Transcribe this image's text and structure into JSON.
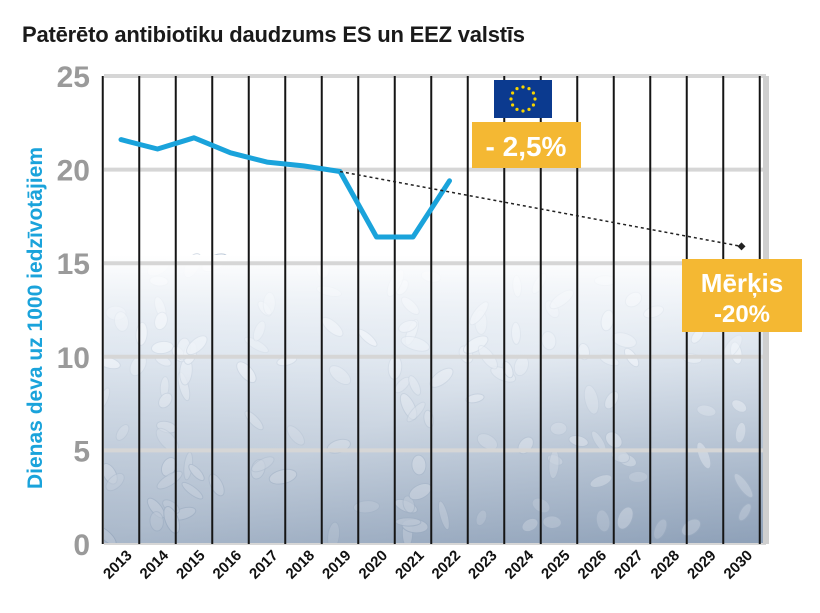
{
  "chart_data": {
    "type": "line",
    "title": "Patērēto antibiotiku daudzums ES un EEZ valstīs",
    "ylabel": "Dienas deva uz 1000 iedzīvotājiem",
    "xlabel": "",
    "x": [
      "2013",
      "2014",
      "2015",
      "2016",
      "2017",
      "2018",
      "2019",
      "2020",
      "2021",
      "2022",
      "2023",
      "2024",
      "2025",
      "2026",
      "2027",
      "2028",
      "2029",
      "2030"
    ],
    "ylim": [
      0,
      25
    ],
    "yticks": [
      0,
      5,
      10,
      15,
      20,
      25
    ],
    "grid": true,
    "series": [
      {
        "style": "solid",
        "color": "#1aa3db",
        "x": [
          "2013",
          "2014",
          "2015",
          "2016",
          "2017",
          "2018",
          "2019",
          "2020",
          "2021",
          "2022"
        ],
        "values": [
          21.6,
          21.1,
          21.7,
          20.9,
          20.4,
          20.2,
          19.9,
          16.4,
          16.4,
          19.4
        ]
      },
      {
        "style": "dashed",
        "color": "#222222",
        "x": [
          "2019",
          "2030"
        ],
        "values": [
          19.9,
          15.9
        ]
      }
    ],
    "annotations": {
      "eu_badge": "- 2,5%",
      "target_line1": "Mērķis",
      "target_line2": "-20%"
    }
  },
  "colors": {
    "accent_blue": "#1aa3db",
    "badge_orange": "#f4b833",
    "eu_blue": "#0b3a8f",
    "eu_star": "#f6d400",
    "grid": "#d6d6d6"
  },
  "icons": {
    "eu_flag": "eu-flag-icon",
    "target_point": "diamond-marker"
  }
}
